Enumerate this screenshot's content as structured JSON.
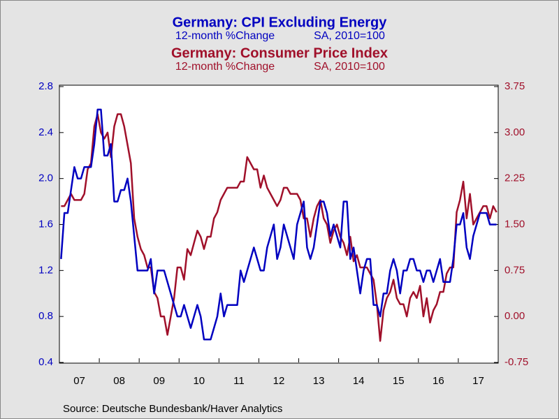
{
  "chart_data": {
    "type": "line",
    "source": "Source:  Deutsche Bundesbank/Haver Analytics",
    "categories": [
      null,
      null,
      null,
      null,
      null,
      null,
      "07",
      null,
      null,
      null,
      null,
      null,
      null,
      null,
      null,
      null,
      null,
      null,
      "08",
      null,
      null,
      null,
      null,
      null,
      null,
      null,
      null,
      null,
      null,
      null,
      "09",
      null,
      null,
      null,
      null,
      null,
      null,
      null,
      null,
      null,
      null,
      null,
      "10",
      null,
      null,
      null,
      null,
      null,
      null,
      null,
      null,
      null,
      null,
      null,
      "11",
      null,
      null,
      null,
      null,
      null,
      null,
      null,
      null,
      null,
      null,
      null,
      "12",
      null,
      null,
      null,
      null,
      null,
      null,
      null,
      null,
      null,
      null,
      null,
      "13",
      null,
      null,
      null,
      null,
      null,
      null,
      null,
      null,
      null,
      null,
      null,
      "14",
      null,
      null,
      null,
      null,
      null,
      null,
      null,
      null,
      null,
      null,
      null,
      "15",
      null,
      null,
      null,
      null,
      null,
      null,
      null,
      null,
      null,
      null,
      null,
      "16",
      null,
      null,
      null,
      null,
      null,
      null,
      null,
      null,
      null,
      null,
      null,
      "17",
      null,
      null,
      null,
      null,
      null
    ],
    "ylim": [
      0.4,
      2.8
    ],
    "yticks": [
      0.4,
      0.8,
      1.2,
      1.6,
      {
        "value": 2,
        "label": "2.0"
      },
      2.4,
      2.8
    ],
    "y2lim": [
      -0.75,
      3.75
    ],
    "y2ticks": [
      -0.75,
      {
        "value": 0,
        "label": "0.00"
      },
      0.75,
      {
        "value": 1.5,
        "label": "1.50"
      },
      2.25,
      {
        "value": 3,
        "label": "3.00"
      },
      3.75
    ],
    "series": [
      {
        "name": "Germany: CPI Excluding Energy",
        "subtitle": "12-month %Change",
        "note": "SA, 2010=100",
        "color": "#0000c0",
        "axis": "y",
        "values": [
          1.3,
          1.7,
          1.7,
          1.9,
          2.1,
          2.0,
          2.0,
          2.1,
          2.1,
          2.1,
          2.3,
          2.6,
          2.6,
          2.2,
          2.2,
          2.3,
          1.8,
          1.8,
          1.9,
          1.9,
          2.0,
          1.8,
          1.5,
          1.2,
          1.2,
          1.2,
          1.2,
          1.3,
          1.0,
          1.2,
          1.2,
          1.2,
          1.1,
          1.0,
          0.9,
          0.8,
          0.8,
          0.9,
          0.8,
          0.7,
          0.8,
          0.9,
          0.8,
          0.6,
          0.6,
          0.6,
          0.7,
          0.8,
          1.0,
          0.8,
          0.9,
          0.9,
          0.9,
          0.9,
          1.2,
          1.1,
          1.2,
          1.3,
          1.4,
          1.3,
          1.2,
          1.2,
          1.4,
          1.5,
          1.6,
          1.3,
          1.4,
          1.6,
          1.5,
          1.4,
          1.3,
          1.6,
          1.7,
          1.8,
          1.4,
          1.3,
          1.4,
          1.6,
          1.8,
          1.8,
          1.7,
          1.5,
          1.6,
          1.5,
          1.4,
          1.8,
          1.8,
          1.3,
          1.4,
          1.2,
          1.0,
          1.2,
          1.3,
          1.3,
          0.9,
          0.9,
          0.8,
          1.0,
          1.0,
          1.2,
          1.3,
          1.2,
          1.0,
          1.2,
          1.2,
          1.3,
          1.3,
          1.2,
          1.2,
          1.1,
          1.2,
          1.2,
          1.1,
          1.2,
          1.3,
          1.1,
          1.1,
          1.1,
          1.3,
          1.6,
          1.6,
          1.7,
          1.4,
          1.3,
          1.5,
          1.6,
          1.7,
          1.7,
          1.7,
          1.6,
          1.6,
          1.6
        ]
      },
      {
        "name": "Germany: Consumer Price Index",
        "subtitle": "12-month %Change",
        "note": "SA, 2010=100",
        "color": "#a0102a",
        "axis": "y2",
        "values": [
          1.8,
          1.8,
          1.9,
          2.0,
          1.9,
          1.9,
          1.9,
          2.0,
          2.4,
          2.5,
          3.1,
          3.3,
          3.0,
          2.9,
          3.0,
          2.6,
          3.1,
          3.3,
          3.3,
          3.1,
          2.8,
          2.5,
          1.6,
          1.3,
          1.1,
          1.0,
          0.8,
          0.8,
          0.4,
          0.3,
          0.0,
          0.0,
          -0.3,
          0.0,
          0.3,
          0.8,
          0.8,
          0.6,
          1.1,
          1.0,
          1.2,
          1.4,
          1.3,
          1.1,
          1.3,
          1.3,
          1.6,
          1.7,
          1.9,
          2.0,
          2.1,
          2.1,
          2.1,
          2.1,
          2.2,
          2.2,
          2.6,
          2.5,
          2.4,
          2.4,
          2.1,
          2.3,
          2.1,
          2.0,
          1.9,
          1.8,
          1.9,
          2.1,
          2.1,
          2.0,
          2.0,
          2.0,
          1.9,
          1.6,
          1.6,
          1.3,
          1.6,
          1.8,
          1.9,
          1.6,
          1.5,
          1.2,
          1.4,
          1.5,
          1.3,
          1.2,
          1.0,
          1.3,
          0.9,
          1.0,
          0.8,
          0.8,
          0.8,
          0.7,
          0.6,
          0.2,
          -0.4,
          0.1,
          0.3,
          0.4,
          0.6,
          0.3,
          0.2,
          0.2,
          0.0,
          0.3,
          0.4,
          0.3,
          0.5,
          0.0,
          0.3,
          -0.1,
          0.1,
          0.2,
          0.4,
          0.4,
          0.7,
          0.8,
          0.8,
          1.7,
          1.9,
          2.2,
          1.6,
          2.0,
          1.5,
          1.6,
          1.7,
          1.8,
          1.8,
          1.6,
          1.8,
          1.7
        ]
      }
    ]
  }
}
